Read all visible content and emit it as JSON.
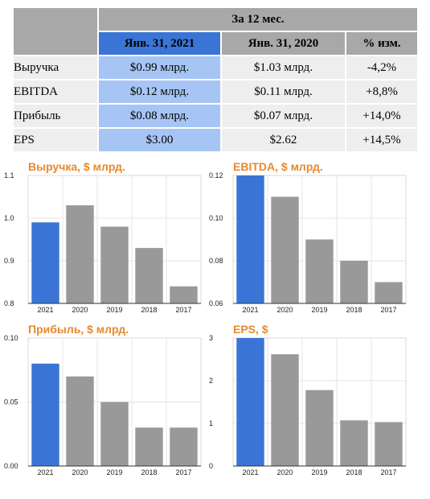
{
  "table": {
    "group_header": "За 12 мес.",
    "col_current": "Янв. 31, 2021",
    "col_previous": "Янв. 31, 2020",
    "col_change": "% изм.",
    "rows": [
      {
        "label": "Выручка",
        "current": "$0.99 млрд.",
        "previous": "$1.03 млрд.",
        "change": "-4,2%"
      },
      {
        "label": "EBITDA",
        "current": "$0.12 млрд.",
        "previous": "$0.11 млрд.",
        "change": "+8,8%"
      },
      {
        "label": "Прибыль",
        "current": "$0.08 млрд.",
        "previous": "$0.07 млрд.",
        "change": "+14,0%"
      },
      {
        "label": "EPS",
        "current": "$3.00",
        "previous": "$2.62",
        "change": "+14,5%"
      }
    ]
  },
  "colors": {
    "highlight": "#3a75d6",
    "bar": "#999999",
    "title": "#e8892c"
  },
  "chart_data": [
    {
      "type": "bar",
      "title": "Выручка, $ млрд.",
      "categories": [
        "2021",
        "2020",
        "2019",
        "2018",
        "2017"
      ],
      "values": [
        0.99,
        1.03,
        0.98,
        0.93,
        0.84
      ],
      "ylim": [
        0.8,
        1.1
      ],
      "yticks": [
        "0.8",
        "0.9",
        "1.0",
        "1.1"
      ],
      "ytick_values": [
        0.8,
        0.9,
        1.0,
        1.1
      ],
      "highlight_index": 0,
      "grid": true
    },
    {
      "type": "bar",
      "title": "EBITDA, $ млрд.",
      "categories": [
        "2021",
        "2020",
        "2019",
        "2018",
        "2017"
      ],
      "values": [
        0.12,
        0.11,
        0.09,
        0.08,
        0.07
      ],
      "ylim": [
        0.06,
        0.12
      ],
      "yticks": [
        "0.06",
        "0.08",
        "0.10",
        "0.12"
      ],
      "ytick_values": [
        0.06,
        0.08,
        0.1,
        0.12
      ],
      "highlight_index": 0,
      "grid": true
    },
    {
      "type": "bar",
      "title": "Прибыль, $ млрд.",
      "categories": [
        "2021",
        "2020",
        "2019",
        "2018",
        "2017"
      ],
      "values": [
        0.08,
        0.07,
        0.05,
        0.03,
        0.03
      ],
      "ylim": [
        0,
        0.1
      ],
      "yticks": [
        "0.00",
        "0.05",
        "0.10"
      ],
      "ytick_values": [
        0,
        0.05,
        0.1
      ],
      "highlight_index": 0,
      "grid": true
    },
    {
      "type": "bar",
      "title": "EPS, $",
      "categories": [
        "2021",
        "2020",
        "2019",
        "2018",
        "2017"
      ],
      "values": [
        3.0,
        2.62,
        1.78,
        1.07,
        1.03
      ],
      "ylim": [
        0,
        3
      ],
      "yticks": [
        "0",
        "1",
        "2",
        "3"
      ],
      "ytick_values": [
        0,
        1,
        2,
        3
      ],
      "highlight_index": 0,
      "grid": true
    }
  ]
}
